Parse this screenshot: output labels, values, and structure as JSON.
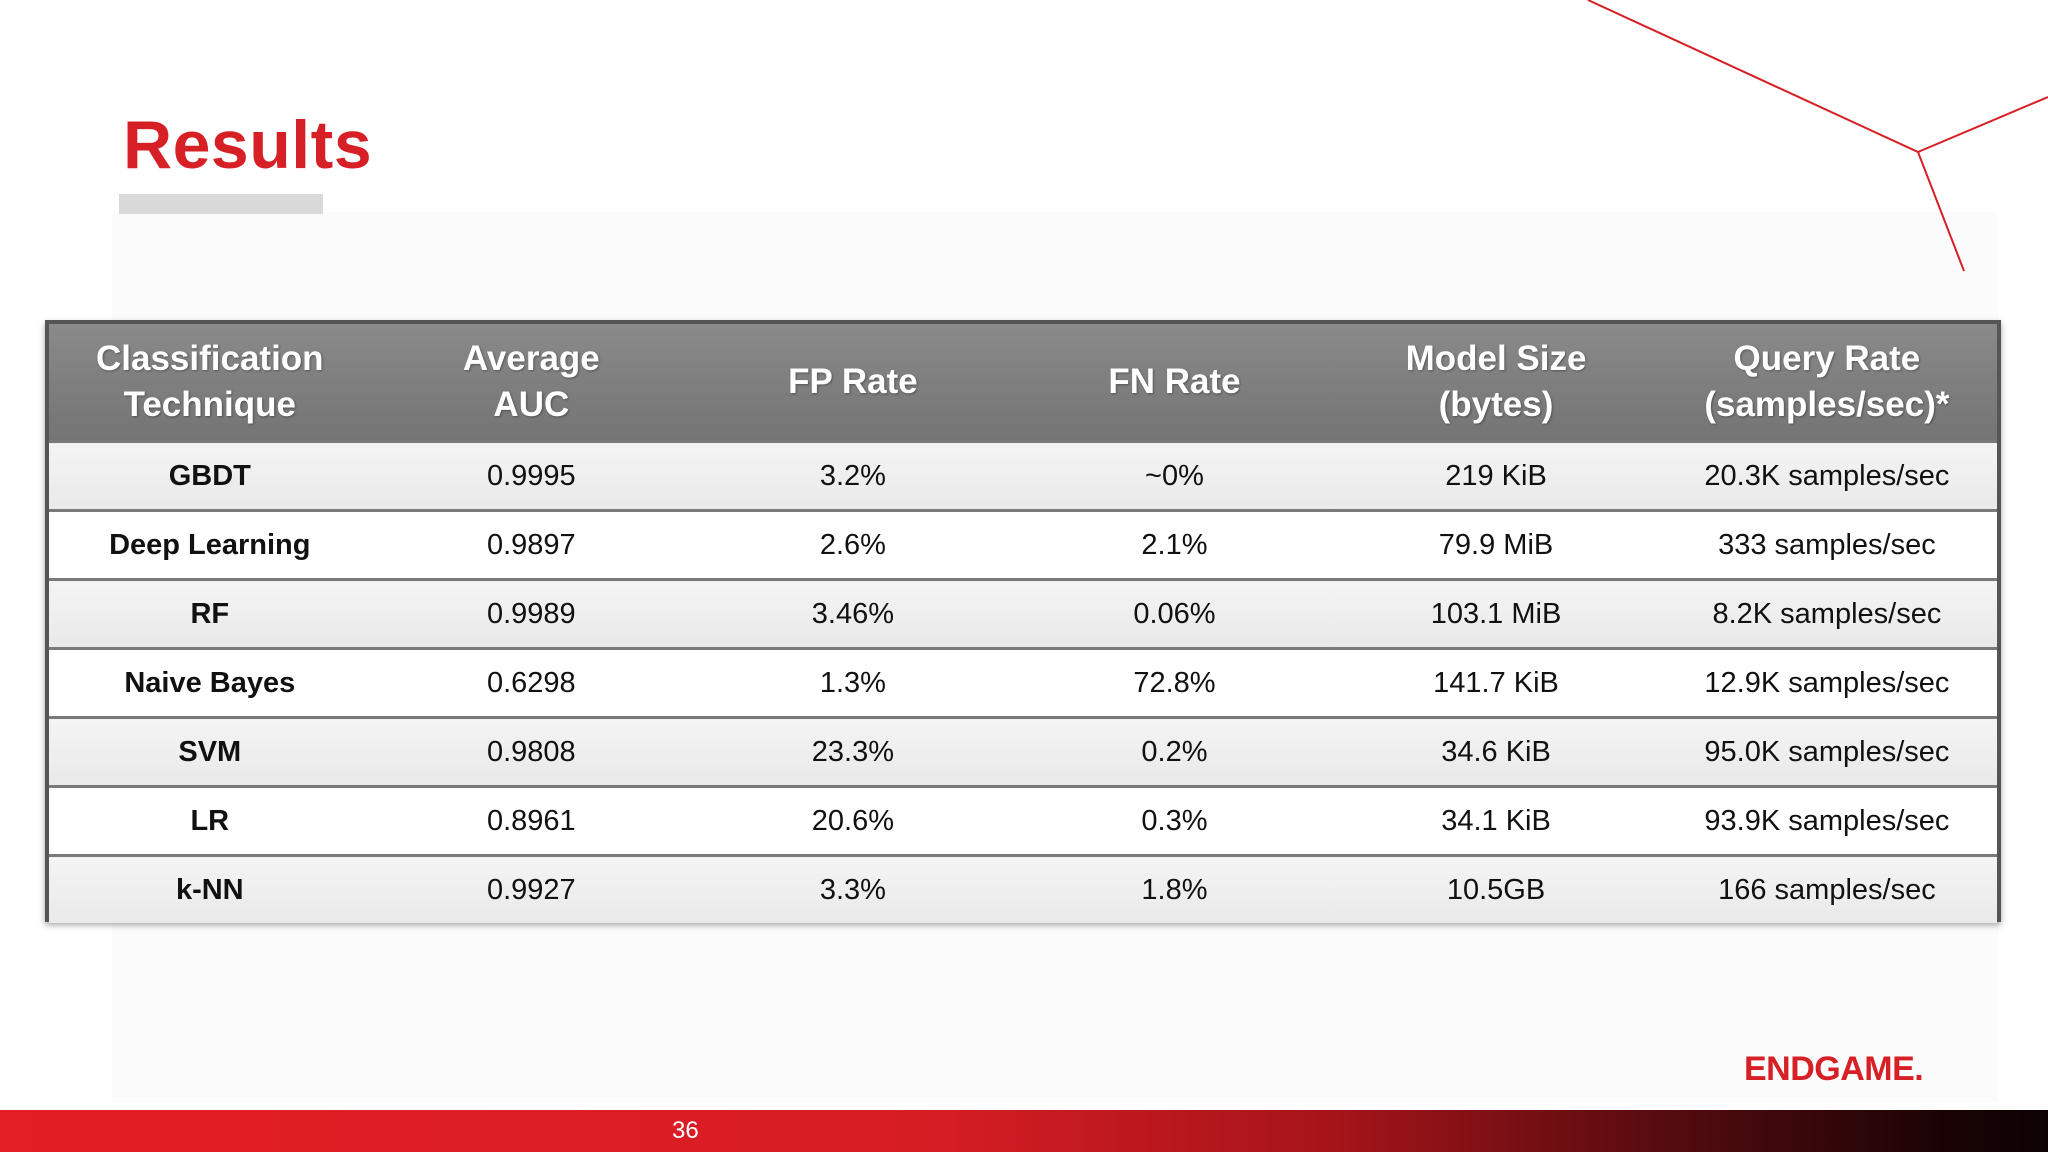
{
  "slide": {
    "title": "Results",
    "page_number": "36",
    "logo_text": "ENDGAME."
  },
  "colors": {
    "accent": "#d71f26",
    "header_bg": "#7f7f7f",
    "underline": "#d9d9d9"
  },
  "table": {
    "headers": [
      "Classification\nTechnique",
      "Average\nAUC",
      "FP Rate",
      "FN Rate",
      "Model Size\n(bytes)",
      "Query Rate\n(samples/sec)*"
    ],
    "rows": [
      [
        "GBDT",
        "0.9995",
        "3.2%",
        "~0%",
        "219 KiB",
        "20.3K samples/sec"
      ],
      [
        "Deep Learning",
        "0.9897",
        "2.6%",
        "2.1%",
        "79.9 MiB",
        "333 samples/sec"
      ],
      [
        "RF",
        "0.9989",
        "3.46%",
        "0.06%",
        "103.1 MiB",
        "8.2K samples/sec"
      ],
      [
        "Naive Bayes",
        "0.6298",
        "1.3%",
        "72.8%",
        "141.7 KiB",
        "12.9K samples/sec"
      ],
      [
        "SVM",
        "0.9808",
        "23.3%",
        "0.2%",
        "34.6 KiB",
        "95.0K samples/sec"
      ],
      [
        "LR",
        "0.8961",
        "20.6%",
        "0.3%",
        "34.1 KiB",
        "93.9K samples/sec"
      ],
      [
        "k-NN",
        "0.9927",
        "3.3%",
        "1.8%",
        "10.5GB",
        "166 samples/sec"
      ]
    ]
  }
}
